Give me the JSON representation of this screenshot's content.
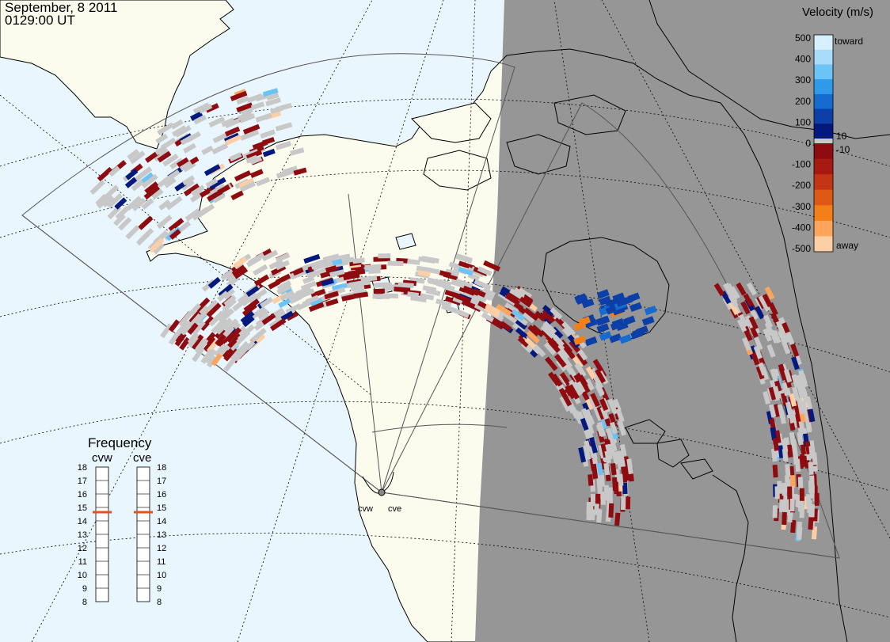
{
  "header": {
    "date": "September, 8 2011",
    "time": "0129:00 UT"
  },
  "legend": {
    "title": "Velocity (m/s)",
    "ticks": [
      "500",
      "400",
      "300",
      "200",
      "100",
      "0",
      "-100",
      "-200",
      "-300",
      "-400",
      "-500"
    ],
    "toward_label": "toward",
    "away_label": "away",
    "plus_ten": "10",
    "minus_ten": "-10",
    "colors": {
      "toward": [
        "#d7efff",
        "#a9dcfb",
        "#6cc3f5",
        "#2f9be8",
        "#156bd0",
        "#0c3fa8",
        "#03197e"
      ],
      "away": [
        "#8e0b10",
        "#a61a12",
        "#c33514",
        "#de5a14",
        "#f27f18",
        "#fba55d",
        "#fecfa4"
      ],
      "ground_scatter": "#c8c8c8"
    }
  },
  "frequency": {
    "title": "Frequency",
    "radars": [
      {
        "name": "cvw",
        "value": 15
      },
      {
        "name": "cve",
        "value": 15
      }
    ],
    "scale": [
      "18",
      "17",
      "16",
      "15",
      "14",
      "13",
      "12",
      "11",
      "10",
      "9",
      "8"
    ],
    "min": 8,
    "max": 18
  },
  "stations": [
    {
      "name": "cvw"
    },
    {
      "name": "cve"
    }
  ],
  "colors": {
    "ocean": "#eaf6fd",
    "land": "#fbfbee",
    "night_ocean": "#969696",
    "night_land": "#969696",
    "indicator": "#e35216"
  }
}
